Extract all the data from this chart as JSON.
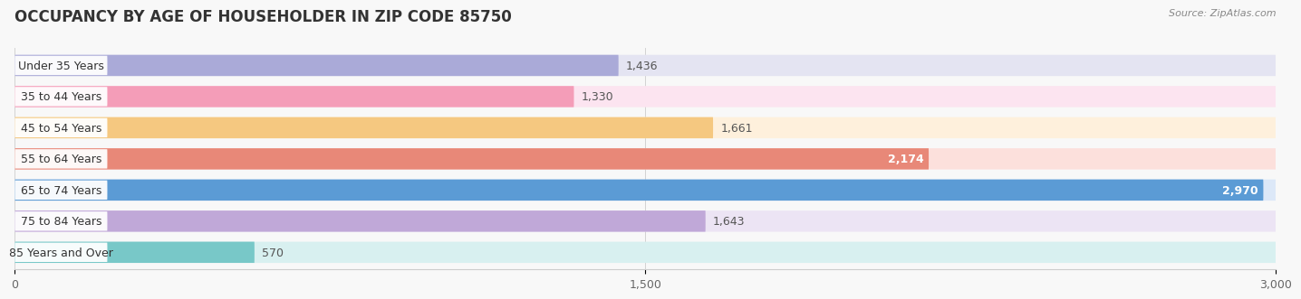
{
  "title": "OCCUPANCY BY AGE OF HOUSEHOLDER IN ZIP CODE 85750",
  "source": "Source: ZipAtlas.com",
  "categories": [
    "Under 35 Years",
    "35 to 44 Years",
    "45 to 54 Years",
    "55 to 64 Years",
    "65 to 74 Years",
    "75 to 84 Years",
    "85 Years and Over"
  ],
  "values": [
    1436,
    1330,
    1661,
    2174,
    2970,
    1643,
    570
  ],
  "bar_colors": [
    "#aaaad8",
    "#f49db8",
    "#f5c880",
    "#e88878",
    "#5b9bd5",
    "#c0a8d8",
    "#78c8c8"
  ],
  "bg_colors": [
    "#e4e4f2",
    "#fce4f0",
    "#fef0dc",
    "#fce0dc",
    "#dce8f8",
    "#ece4f4",
    "#d8f0f0"
  ],
  "value_labels": [
    "1,436",
    "1,330",
    "1,661",
    "2,174",
    "2,970",
    "1,643",
    "570"
  ],
  "value_inside": [
    false,
    false,
    false,
    true,
    true,
    false,
    false
  ],
  "xlim": [
    0,
    3000
  ],
  "xticks": [
    0,
    1500,
    3000
  ],
  "xtick_labels": [
    "0",
    "1,500",
    "3,000"
  ],
  "background_color": "#f8f8f8",
  "title_fontsize": 12,
  "bar_height": 0.68,
  "label_fontsize": 9,
  "value_fontsize": 9,
  "fig_width": 14.06,
  "fig_height": 3.4,
  "dpi": 100
}
